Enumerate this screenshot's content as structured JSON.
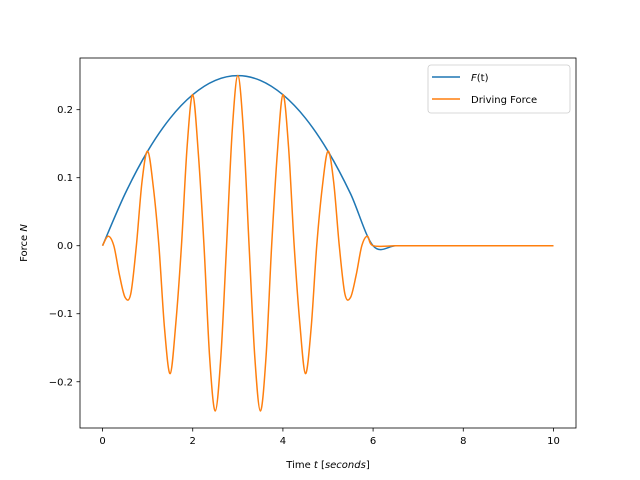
{
  "chart_data": {
    "type": "line",
    "title": "",
    "xlabel": {
      "prefix": "Time ",
      "var": "t",
      "mid": " [",
      "unit": "seconds",
      "suffix": "]"
    },
    "ylabel": {
      "prefix": "Force ",
      "var": "N"
    },
    "xlim": [
      -0.5,
      10.5
    ],
    "ylim": [
      -0.268,
      0.276
    ],
    "xticks": [
      0,
      2,
      4,
      6,
      8,
      10
    ],
    "xtick_labels": [
      "0",
      "2",
      "4",
      "6",
      "8",
      "10"
    ],
    "yticks": [
      -0.2,
      -0.1,
      0.0,
      0.1,
      0.2
    ],
    "ytick_labels": [
      "−0.2",
      "−0.1",
      "0.0",
      "0.1",
      "0.2"
    ],
    "grid": false,
    "legend_placement": "upper-right",
    "series": [
      {
        "name": "F(t)",
        "legend": {
          "var": "F",
          "arg": "(t)"
        },
        "color": "#1f77b4",
        "x": [
          0,
          0.5,
          1,
          1.5,
          2,
          2.5,
          3,
          3.5,
          4,
          4.5,
          5,
          5.5,
          6,
          6.5,
          7,
          7.5,
          8,
          8.5,
          9,
          9.5,
          10
        ],
        "y": [
          0,
          0.0764,
          0.139,
          0.1875,
          0.222,
          0.243,
          0.25,
          0.243,
          0.222,
          0.1875,
          0.139,
          0.0764,
          0,
          0,
          0,
          0,
          0,
          0,
          0,
          0,
          0
        ]
      },
      {
        "name": "Driving Force",
        "legend": {
          "text": "Driving Force"
        },
        "color": "#ff7f0e",
        "x": [
          0,
          0.125,
          0.25,
          0.375,
          0.5,
          0.625,
          0.75,
          0.875,
          1,
          1.125,
          1.25,
          1.375,
          1.5,
          1.625,
          1.75,
          1.875,
          2,
          2.125,
          2.25,
          2.375,
          2.5,
          2.625,
          2.75,
          2.875,
          3,
          3.125,
          3.25,
          3.375,
          3.5,
          3.625,
          3.75,
          3.875,
          4,
          4.125,
          4.25,
          4.375,
          4.5,
          4.625,
          4.75,
          4.875,
          5,
          5.125,
          5.25,
          5.375,
          5.5,
          5.625,
          5.75,
          5.875,
          6,
          6.5,
          7,
          7.5,
          8,
          8.5,
          9,
          9.5,
          10
        ],
        "y": [
          0,
          0.014,
          0,
          -0.043,
          -0.076,
          -0.071,
          0,
          0.094,
          0.139,
          0.087,
          0,
          -0.122,
          -0.188,
          -0.114,
          0,
          0.145,
          0.222,
          0.135,
          0,
          -0.164,
          -0.243,
          -0.162,
          0,
          0.168,
          0.25,
          0.168,
          0,
          -0.162,
          -0.243,
          -0.164,
          0,
          0.135,
          0.222,
          0.145,
          0,
          -0.114,
          -0.188,
          -0.122,
          0,
          0.087,
          0.139,
          0.094,
          0,
          -0.071,
          -0.076,
          -0.043,
          0,
          0.014,
          0,
          0,
          0,
          0,
          0,
          0,
          0,
          0,
          0
        ]
      }
    ]
  }
}
